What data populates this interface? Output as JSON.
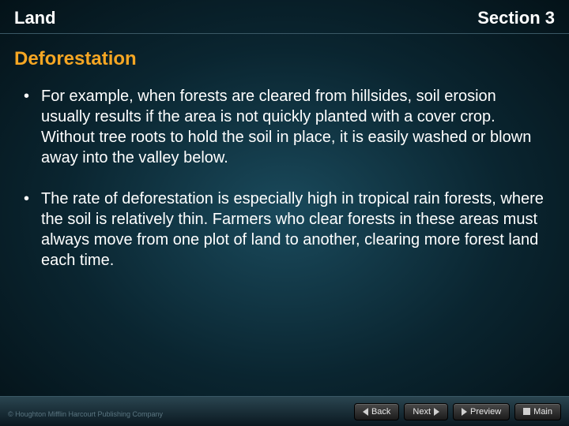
{
  "header": {
    "left": "Land",
    "right": "Section 3"
  },
  "subtitle": "Deforestation",
  "bullets": [
    "For example, when forests are cleared from hillsides, soil erosion usually results if the area is not quickly planted with a cover crop. Without tree roots to hold the soil in place, it is easily washed or blown away into the valley below.",
    "The rate of deforestation is especially high in tropical rain forests, where the soil is relatively thin. Farmers who clear forests in these areas must always move from one plot of land to another, clearing more forest land each time."
  ],
  "nav": {
    "back": "Back",
    "next": "Next",
    "preview": "Preview",
    "main": "Main"
  },
  "copyright": "© Houghton Mifflin Harcourt Publishing Company",
  "colors": {
    "accent": "#f5a623",
    "text": "#ffffff",
    "bg_center": "#1a4a5c",
    "bg_edge": "#041218"
  }
}
